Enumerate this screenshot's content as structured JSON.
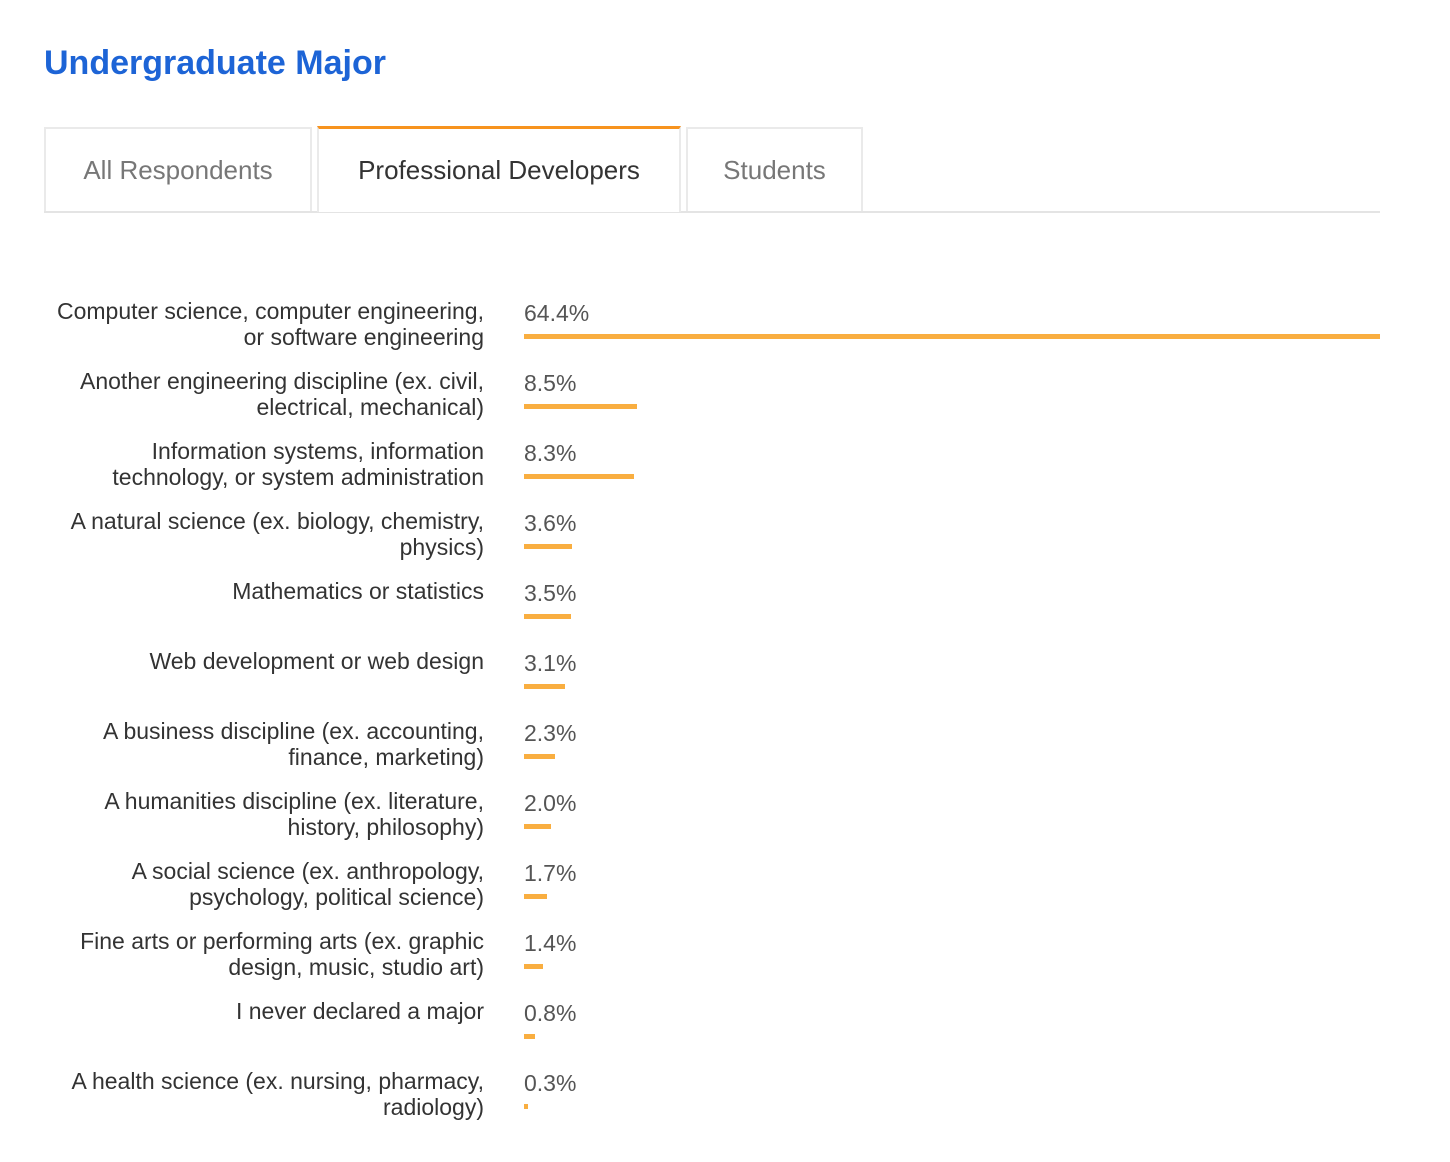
{
  "title": "Undergraduate Major",
  "tabs": [
    "All Respondents",
    "Professional Developers",
    "Students"
  ],
  "active_tab": 1,
  "chart_data": {
    "type": "bar",
    "orientation": "horizontal",
    "color": "#f9ae40",
    "categories": [
      "Computer science, computer engineering, or software engineering",
      "Another engineering discipline (ex. civil, electrical, mechanical)",
      "Information systems, information technology, or system administration",
      "A natural science (ex. biology, chemistry, physics)",
      "Mathematics or statistics",
      "Web development or web design",
      "A business discipline (ex. accounting, finance, marketing)",
      "A humanities discipline (ex. literature, history, philosophy)",
      "A social science (ex. anthropology, psychology, political science)",
      "Fine arts or performing arts (ex. graphic design, music, studio art)",
      "I never declared a major",
      "A health science (ex. nursing, pharmacy, radiology)"
    ],
    "values": [
      64.4,
      8.5,
      8.3,
      3.6,
      3.5,
      3.1,
      2.3,
      2.0,
      1.7,
      1.4,
      0.8,
      0.3
    ],
    "value_labels": [
      "64.4%",
      "8.5%",
      "8.3%",
      "3.6%",
      "3.5%",
      "3.1%",
      "2.3%",
      "2.0%",
      "1.7%",
      "1.4%",
      "0.8%",
      "0.3%"
    ],
    "xlim": [
      0,
      64.4
    ]
  }
}
